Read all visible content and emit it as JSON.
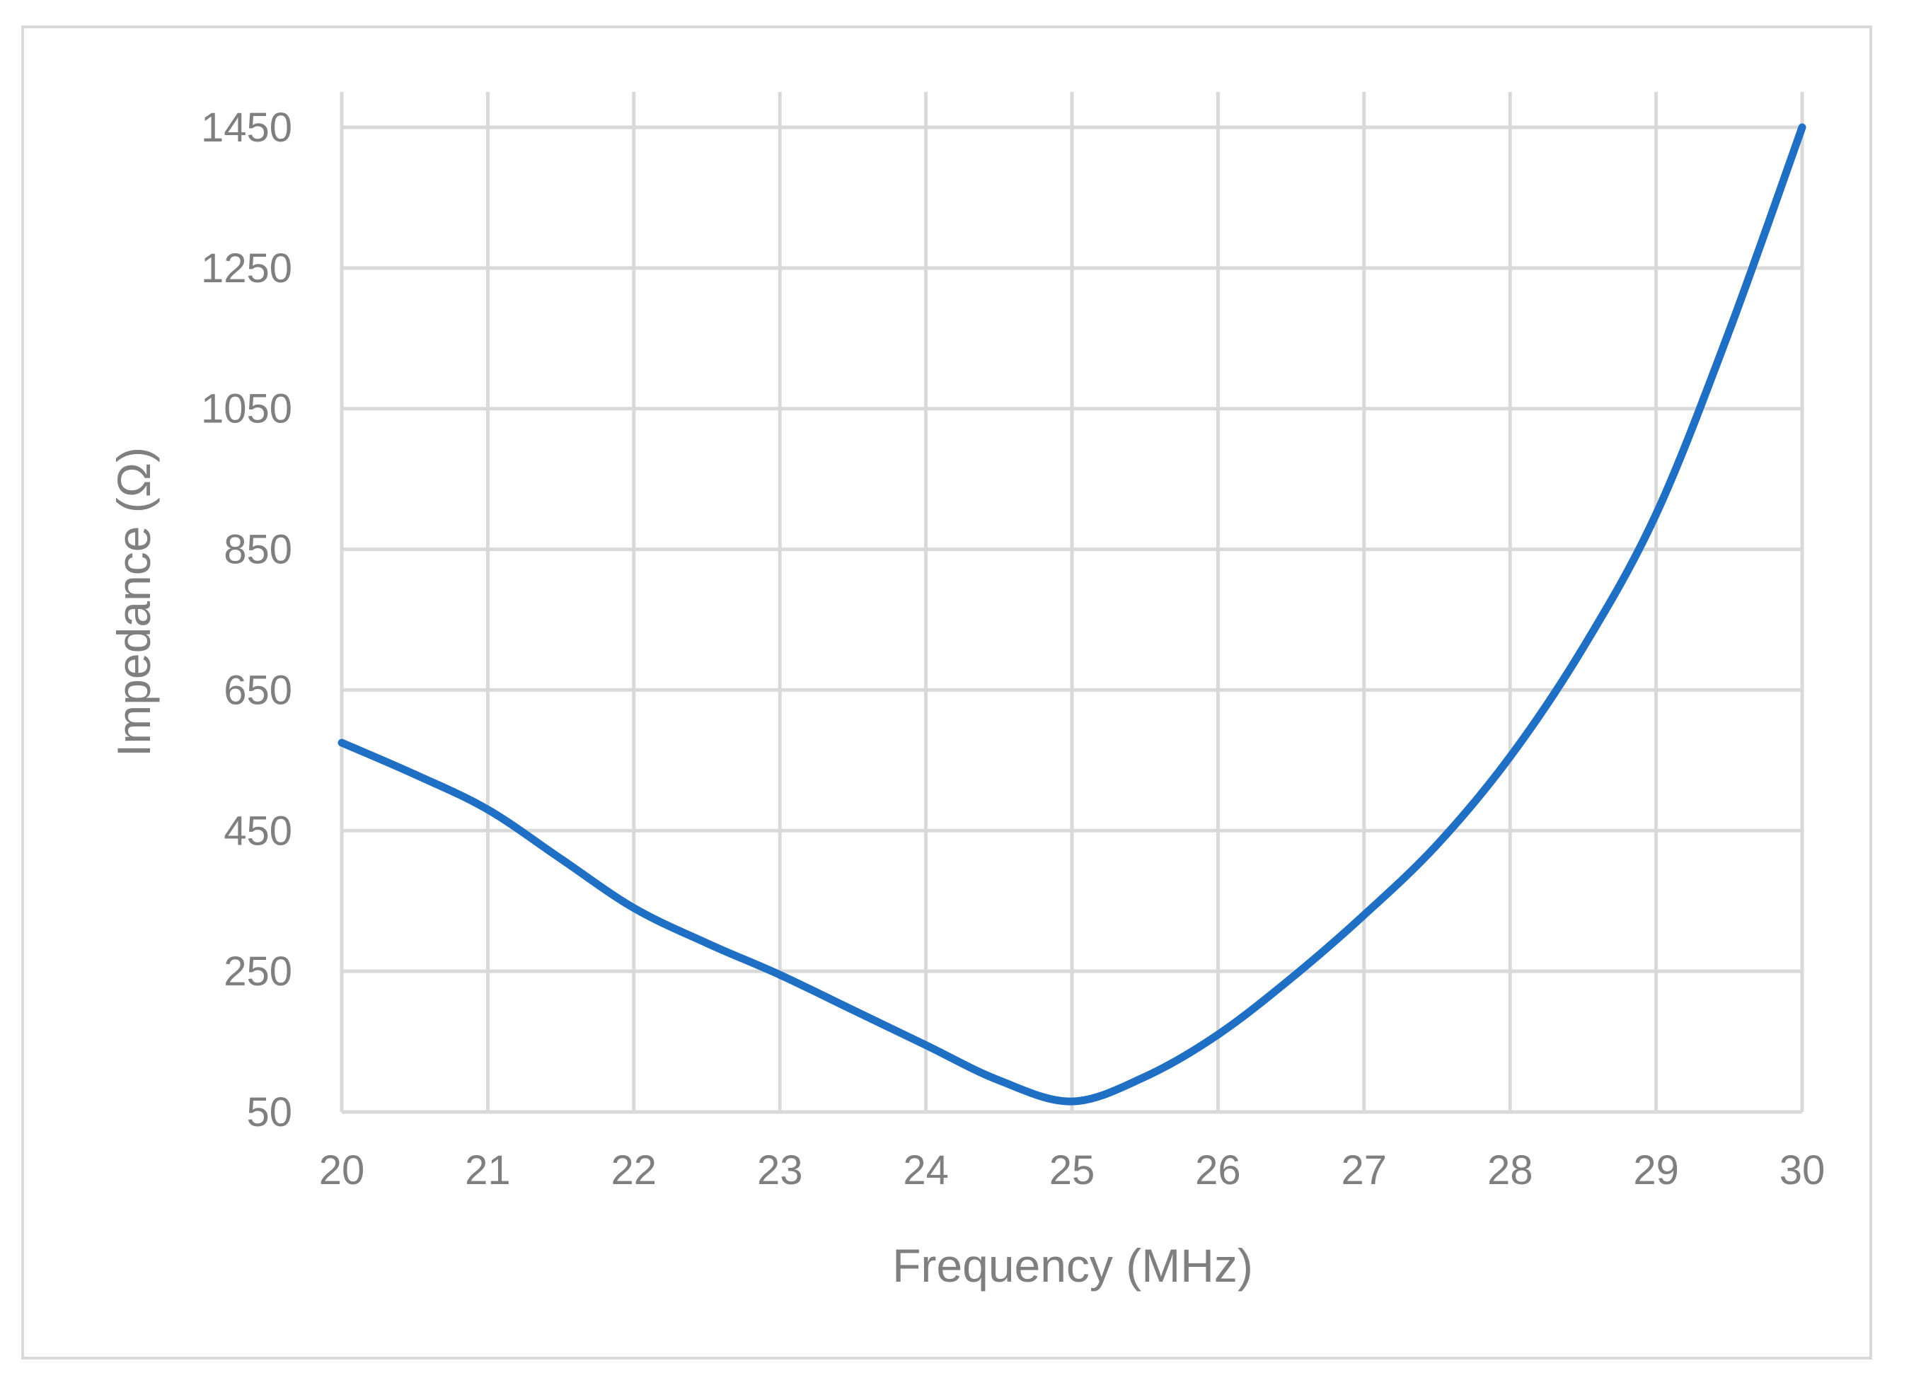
{
  "chart_data": {
    "type": "line",
    "title": "",
    "xlabel": "Frequency (MHz)",
    "ylabel": "Impedance (Ω)",
    "xlim": [
      20,
      30
    ],
    "ylim": [
      50,
      1450
    ],
    "x_ticks": [
      "20",
      "21",
      "22",
      "23",
      "24",
      "25",
      "26",
      "27",
      "28",
      "29",
      "30"
    ],
    "y_ticks": [
      "50",
      "250",
      "450",
      "650",
      "850",
      "1050",
      "1250",
      "1450"
    ],
    "grid": true,
    "legend": "none",
    "series": [
      {
        "color": "#1f6fc5",
        "x": [
          20,
          20.5,
          21,
          21.5,
          22,
          22.5,
          23,
          23.5,
          24,
          24.5,
          25,
          25.5,
          26,
          26.5,
          27,
          27.5,
          28,
          28.5,
          29,
          29.5,
          30
        ],
        "y": [
          575,
          530,
          480,
          410,
          340,
          290,
          245,
          195,
          145,
          95,
          65,
          100,
          160,
          240,
          330,
          430,
          555,
          710,
          900,
          1160,
          1450
        ]
      }
    ]
  }
}
